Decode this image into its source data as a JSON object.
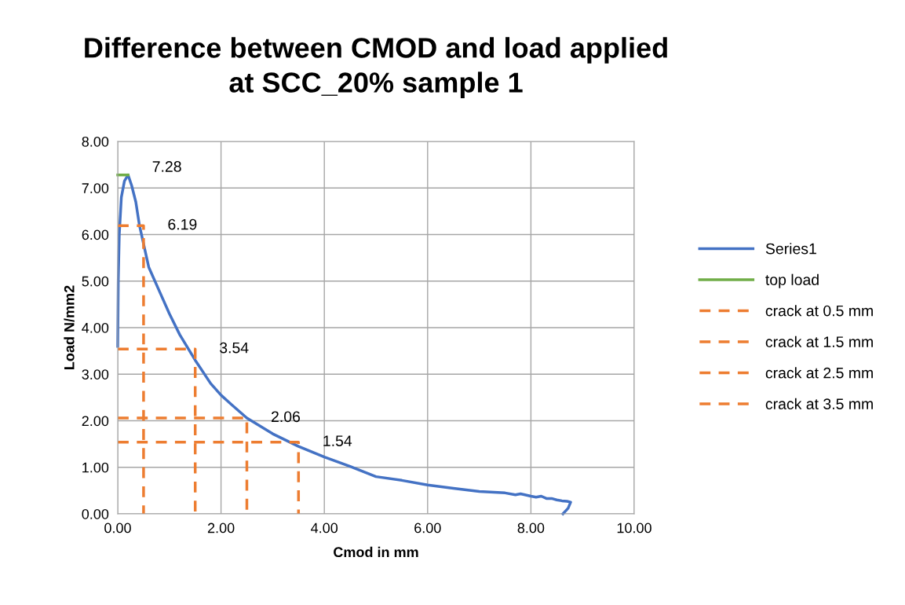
{
  "chart_data": {
    "type": "line",
    "title": "Difference between CMOD and load applied\nat SCC_20% sample 1",
    "xlabel": "Cmod in mm",
    "ylabel": "Load N/mm2",
    "xlim": [
      0,
      10
    ],
    "xticks": [
      {
        "value": 0,
        "label": "0.00"
      },
      {
        "value": 2,
        "label": "2.00"
      },
      {
        "value": 4,
        "label": "4.00"
      },
      {
        "value": 6,
        "label": "6.00"
      },
      {
        "value": 8,
        "label": "8.00"
      },
      {
        "value": 10,
        "label": "10.00"
      }
    ],
    "ylim": [
      0,
      8
    ],
    "yticks": [
      {
        "value": 0,
        "label": "0.00"
      },
      {
        "value": 1,
        "label": "1.00"
      },
      {
        "value": 2,
        "label": "2.00"
      },
      {
        "value": 3,
        "label": "3.00"
      },
      {
        "value": 4,
        "label": "4.00"
      },
      {
        "value": 5,
        "label": "5.00"
      },
      {
        "value": 6,
        "label": "6.00"
      },
      {
        "value": 7,
        "label": "7.00"
      },
      {
        "value": 8,
        "label": "8.00"
      }
    ],
    "grid": true,
    "legend": "right",
    "marker": "none",
    "series": [
      {
        "name": "Series1",
        "color": "#4472c4",
        "line_style": "solid",
        "x": [
          0.0,
          0.01,
          0.03,
          0.07,
          0.13,
          0.2,
          0.27,
          0.35,
          0.42,
          0.5,
          0.6,
          0.8,
          1.0,
          1.2,
          1.5,
          1.8,
          2.0,
          2.2,
          2.5,
          3.0,
          3.5,
          4.0,
          4.5,
          5.0,
          5.5,
          6.0,
          6.5,
          7.0,
          7.5,
          7.7,
          7.8,
          8.0,
          8.1,
          8.2,
          8.3,
          8.4,
          8.5,
          8.6,
          8.7,
          8.77,
          8.72,
          8.62
        ],
        "values": [
          3.6,
          5.0,
          6.0,
          6.8,
          7.15,
          7.28,
          7.05,
          6.7,
          6.2,
          5.8,
          5.3,
          4.8,
          4.3,
          3.85,
          3.3,
          2.8,
          2.55,
          2.35,
          2.06,
          1.72,
          1.45,
          1.22,
          1.02,
          0.8,
          0.72,
          0.62,
          0.55,
          0.48,
          0.45,
          0.41,
          0.43,
          0.38,
          0.36,
          0.38,
          0.33,
          0.33,
          0.3,
          0.28,
          0.27,
          0.25,
          0.12,
          0.0
        ]
      },
      {
        "name": "top load",
        "color": "#70ad47",
        "line_style": "solid",
        "x": [
          0,
          0.2
        ],
        "values": [
          7.28,
          7.28
        ]
      },
      {
        "name": "crack at 0.5 mm",
        "color": "#ed7d31",
        "line_style": "dashed",
        "x": [
          0,
          0.5,
          0.5
        ],
        "values": [
          6.19,
          6.19,
          0
        ]
      },
      {
        "name": "crack at 1.5 mm",
        "color": "#ed7d31",
        "line_style": "dashed",
        "x": [
          0,
          1.5,
          1.5
        ],
        "values": [
          3.54,
          3.54,
          0
        ]
      },
      {
        "name": "crack at 2.5 mm",
        "color": "#ed7d31",
        "line_style": "dashed",
        "x": [
          0,
          2.5,
          2.5
        ],
        "values": [
          2.06,
          2.06,
          0
        ]
      },
      {
        "name": "crack at 3.5 mm",
        "color": "#ed7d31",
        "line_style": "dashed",
        "x": [
          0,
          3.5,
          3.5
        ],
        "values": [
          1.54,
          1.54,
          0
        ]
      }
    ],
    "annotations": [
      {
        "text": "7.28",
        "x": 0.2,
        "y": 7.28
      },
      {
        "text": "6.19",
        "x": 0.5,
        "y": 6.19
      },
      {
        "text": "3.54",
        "x": 1.5,
        "y": 3.54
      },
      {
        "text": "2.06",
        "x": 2.5,
        "y": 2.06
      },
      {
        "text": "1.54",
        "x": 3.5,
        "y": 1.54
      }
    ]
  }
}
